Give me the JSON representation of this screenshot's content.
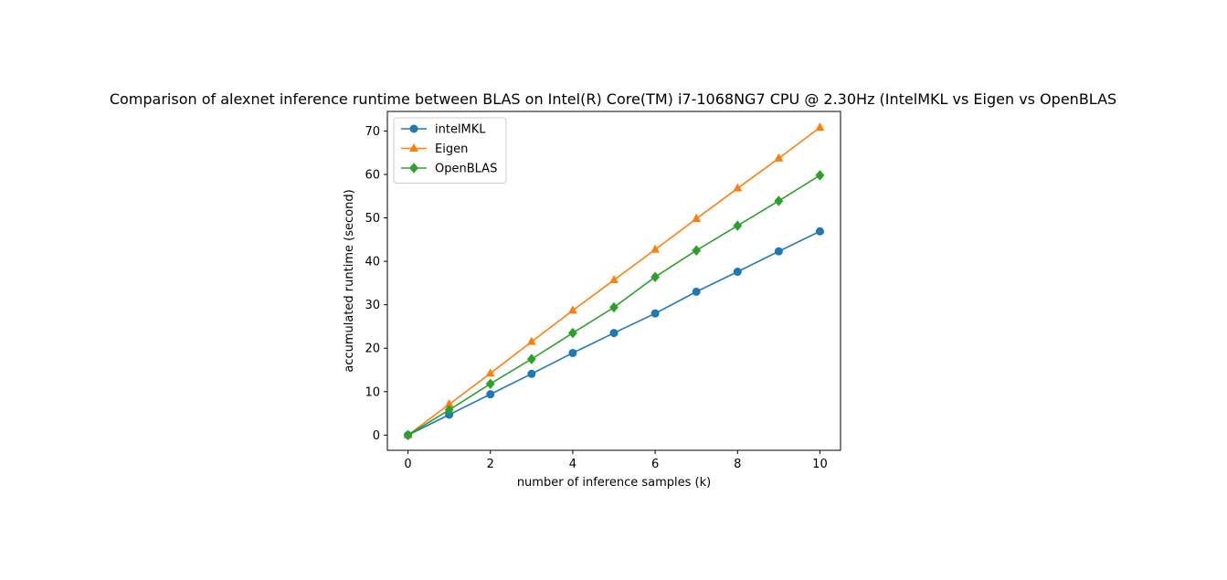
{
  "chart_data": {
    "type": "line",
    "title": "Comparison of alexnet inference runtime between BLAS on Intel(R) Core(TM) i7-1068NG7 CPU @ 2.30Hz (IntelMKL vs Eigen vs OpenBLAS",
    "xlabel": "number of inference samples (k)",
    "ylabel": "accumulated runtime (second)",
    "xlim": [
      -0.5,
      10.5
    ],
    "ylim": [
      -3.5,
      74.5
    ],
    "xticks": [
      0,
      2,
      4,
      6,
      8,
      10
    ],
    "yticks": [
      0,
      10,
      20,
      30,
      40,
      50,
      60,
      70
    ],
    "grid": false,
    "legend_position": "upper-left",
    "x": [
      0,
      1,
      2,
      3,
      4,
      5,
      6,
      7,
      8,
      9,
      10
    ],
    "series": [
      {
        "name": "intelMKL",
        "color": "#1f77b4",
        "marker": "circle",
        "values": [
          0,
          4.7,
          9.4,
          14.1,
          18.9,
          23.5,
          28.0,
          33.0,
          37.6,
          42.3,
          46.9
        ]
      },
      {
        "name": "Eigen",
        "color": "#ff7f0e",
        "marker": "triangle",
        "values": [
          0,
          7.1,
          14.2,
          21.5,
          28.7,
          35.7,
          42.7,
          49.8,
          56.8,
          63.7,
          70.8
        ]
      },
      {
        "name": "OpenBLAS",
        "color": "#2ca02c",
        "marker": "diamond",
        "values": [
          0,
          5.8,
          11.8,
          17.5,
          23.5,
          29.4,
          36.4,
          42.5,
          48.2,
          53.9,
          59.8
        ]
      }
    ]
  }
}
